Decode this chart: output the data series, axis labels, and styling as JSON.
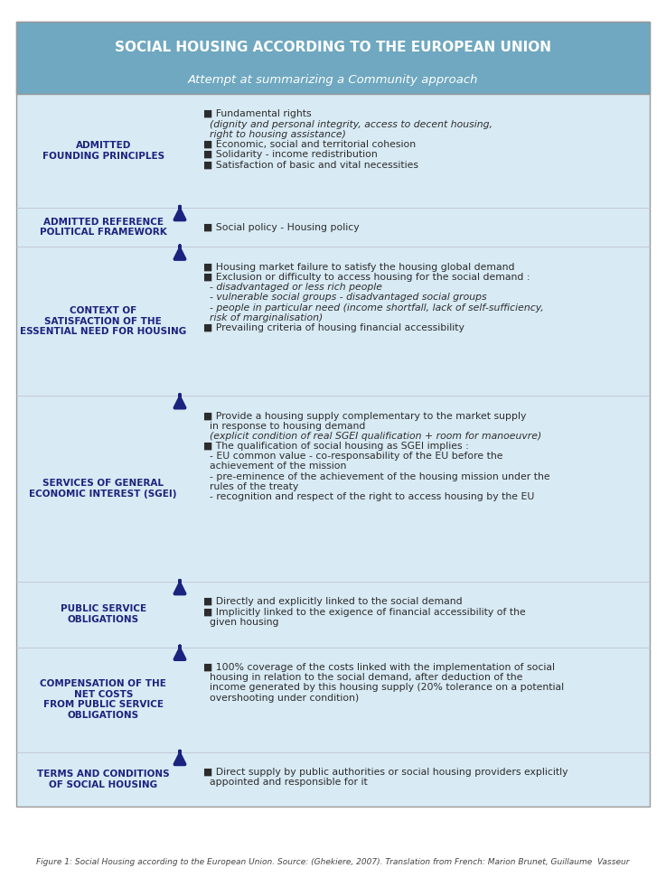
{
  "title": "SOCIAL HOUSING ACCORDING TO THE EUROPEAN UNION",
  "subtitle": "Attempt at summarizing a Community approach",
  "title_bg": "#6fa8c0",
  "body_bg": "#d8eaf4",
  "border_color": "#999999",
  "arrow_color": "#1a237e",
  "label_color": "#1a237e",
  "bullet_color": "#1a237e",
  "text_color": "#2c2c2c",
  "caption": "Figure 1: Social Housing according to the European Union. Source: (Ghekiere, 2007). Translation from French: Marion Brunet, Guillaume  Vasseur",
  "rows": [
    {
      "label": "ADMITTED\nFOUNDING PRINCIPLES",
      "content_lines": [
        {
          "text": "■ Fundamental rights",
          "bold": false,
          "italic": false
        },
        {
          "text": "  (dignity and personal integrity, access to decent housing,",
          "bold": false,
          "italic": true
        },
        {
          "text": "  right to housing assistance)",
          "bold": false,
          "italic": true
        },
        {
          "text": "■ Economic, social and territorial cohesion",
          "bold": false,
          "italic": false
        },
        {
          "text": "■ Solidarity - income redistribution",
          "bold": false,
          "italic": false
        },
        {
          "text": "■ Satisfaction of basic and vital necessities",
          "bold": false,
          "italic": false
        }
      ]
    },
    {
      "label": "ADMITTED REFERENCE\nPOLITICAL FRAMEWORK",
      "content_lines": [
        {
          "text": "■ Social policy - Housing policy",
          "bold": false,
          "italic": false
        }
      ]
    },
    {
      "label": "CONTEXT OF\nSATISFACTION OF THE\nESSENTIAL NEED FOR HOUSING",
      "content_lines": [
        {
          "text": "■ Housing market failure to satisfy the housing global demand",
          "bold": false,
          "italic": false
        },
        {
          "text": "■ Exclusion or difficulty to access housing for the social demand :",
          "bold": false,
          "italic": false
        },
        {
          "text": "  - disadvantaged or less rich people",
          "bold": false,
          "italic": true
        },
        {
          "text": "  - vulnerable social groups - disadvantaged social groups",
          "bold": false,
          "italic": true
        },
        {
          "text": "  - people in particular need (income shortfall, lack of self-sufficiency,",
          "bold": false,
          "italic": true
        },
        {
          "text": "  risk of marginalisation)",
          "bold": false,
          "italic": true
        },
        {
          "text": "■ Prevailing criteria of housing financial accessibility",
          "bold": false,
          "italic": false
        }
      ]
    },
    {
      "label": "SERVICES OF GENERAL\nECONOMIC INTEREST (SGEI)",
      "content_lines": [
        {
          "text": "■ Provide a housing supply complementary to the market supply",
          "bold": false,
          "italic": false
        },
        {
          "text": "  in response to housing demand",
          "bold": false,
          "italic": false
        },
        {
          "text": "  (explicit condition of real SGEI qualification + room for manoeuvre)",
          "bold": false,
          "italic": true
        },
        {
          "text": "■ The qualification of social housing as SGEI implies :",
          "bold": false,
          "italic": false
        },
        {
          "text": "  - EU common value - co-responsability of the EU before the",
          "bold": false,
          "italic": false
        },
        {
          "text": "  achievement of the mission",
          "bold": false,
          "italic": false
        },
        {
          "text": "  - pre-eminence of the achievement of the housing mission under the",
          "bold": false,
          "italic": false
        },
        {
          "text": "  rules of the treaty",
          "bold": false,
          "italic": false
        },
        {
          "text": "  - recognition and respect of the right to access housing by the EU",
          "bold": false,
          "italic": false
        }
      ]
    },
    {
      "label": "PUBLIC SERVICE\nOBLIGATIONS",
      "content_lines": [
        {
          "text": "■ Directly and explicitly linked to the social demand",
          "bold": false,
          "italic": false
        },
        {
          "text": "■ Implicitly linked to the exigence of financial accessibility of the",
          "bold": false,
          "italic": false
        },
        {
          "text": "  given housing",
          "bold": false,
          "italic": false
        }
      ]
    },
    {
      "label": "COMPENSATION OF THE\nNET COSTS\nFROM PUBLIC SERVICE\nOBLIGATIONS",
      "content_lines": [
        {
          "text": "■ 100% coverage of the costs linked with the implementation of social",
          "bold": false,
          "italic": false
        },
        {
          "text": "  housing in relation to the social demand, after deduction of the",
          "bold": false,
          "italic": false
        },
        {
          "text": "  income generated by this housing supply (20% tolerance on a potential",
          "bold": false,
          "italic": false
        },
        {
          "text": "  overshooting under condition)",
          "bold": false,
          "italic": false
        }
      ]
    },
    {
      "label": "TERMS AND CONDITIONS\nOF SOCIAL HOUSING",
      "content_lines": [
        {
          "text": "■ Direct supply by public authorities or social housing providers explicitly",
          "bold": false,
          "italic": false
        },
        {
          "text": "  appointed and responsible for it",
          "bold": false,
          "italic": false
        }
      ]
    }
  ]
}
